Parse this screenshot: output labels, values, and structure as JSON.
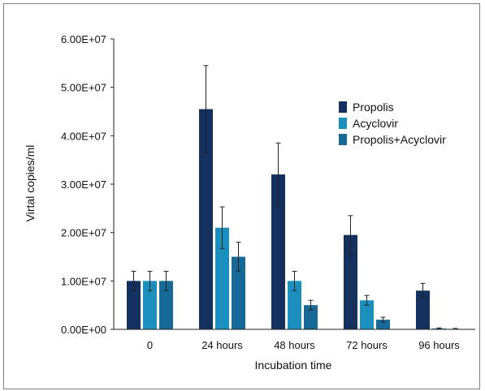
{
  "chart_data": {
    "type": "bar",
    "categories": [
      "0",
      "24 hours",
      "48 hours",
      "72 hours",
      "96 hours"
    ],
    "series": [
      {
        "name": "Propolis",
        "color": "#13305e",
        "values": [
          10000000,
          45500000,
          32000000,
          19500000,
          8000000
        ],
        "errors": [
          2000000,
          9000000,
          6500000,
          4000000,
          1500000
        ]
      },
      {
        "name": "Acyclovir",
        "color": "#1b8fbe",
        "values": [
          10000000,
          21000000,
          10000000,
          6000000,
          200000
        ],
        "errors": [
          2000000,
          4300000,
          2000000,
          1000000,
          100000
        ]
      },
      {
        "name": "Propolis+Acyclovir",
        "color": "#176a98",
        "values": [
          10000000,
          15000000,
          5000000,
          2000000,
          100000
        ],
        "errors": [
          2000000,
          3000000,
          1000000,
          500000,
          100000
        ]
      }
    ],
    "ylim": [
      0,
      60000000
    ],
    "yticks": [
      "0.00E+00",
      "1.00E+07",
      "2.00E+07",
      "3.00E+07",
      "4.00E+07",
      "5.00E+07",
      "6.00E+07"
    ],
    "xlabel": "Incubation time",
    "ylabel": "Virtal copies/ml",
    "legend_position": "right",
    "grid": false
  }
}
